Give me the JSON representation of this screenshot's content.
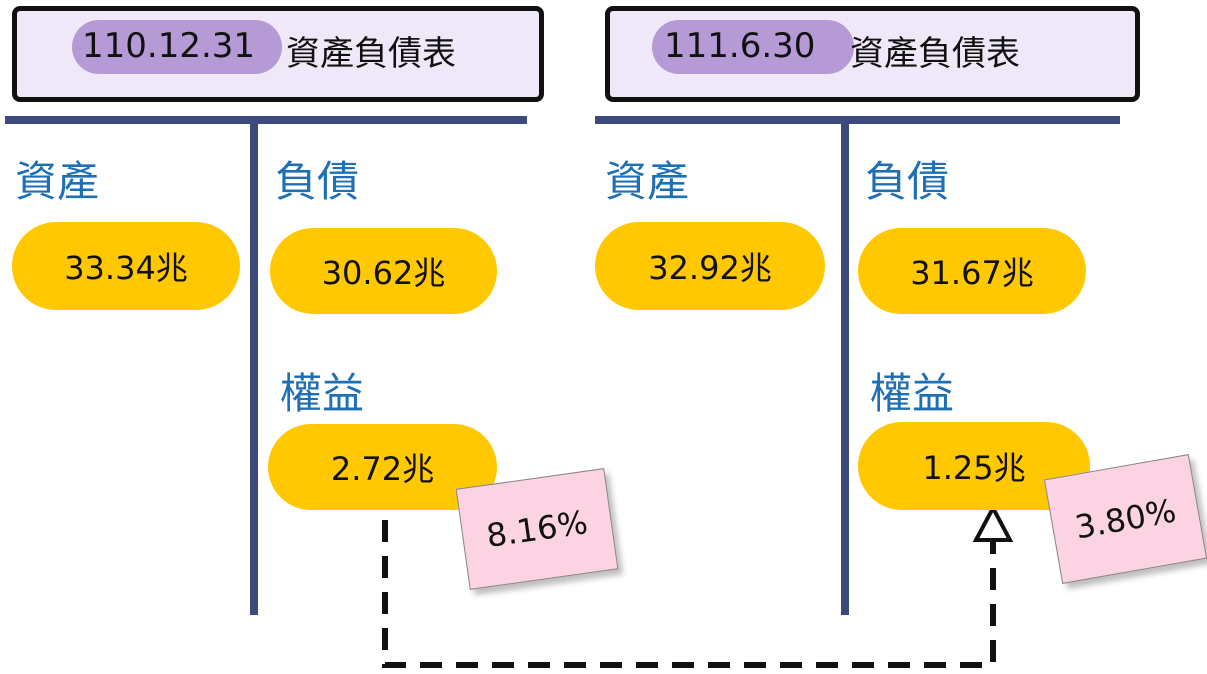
{
  "panels": [
    {
      "date": "110.12.31",
      "title": "資產負債表",
      "assets_label": "資產",
      "assets": "33.34兆",
      "liabilities_label": "負債",
      "liabilities": "30.62兆",
      "equity_label": "權益",
      "equity": "2.72兆",
      "ratio": "8.16%"
    },
    {
      "date": "111.6.30",
      "title": "資產負債表",
      "assets_label": "資產",
      "assets": "32.92兆",
      "liabilities_label": "負債",
      "liabilities": "31.67兆",
      "equity_label": "權益",
      "equity": "1.25兆",
      "ratio": "3.80%"
    }
  ]
}
